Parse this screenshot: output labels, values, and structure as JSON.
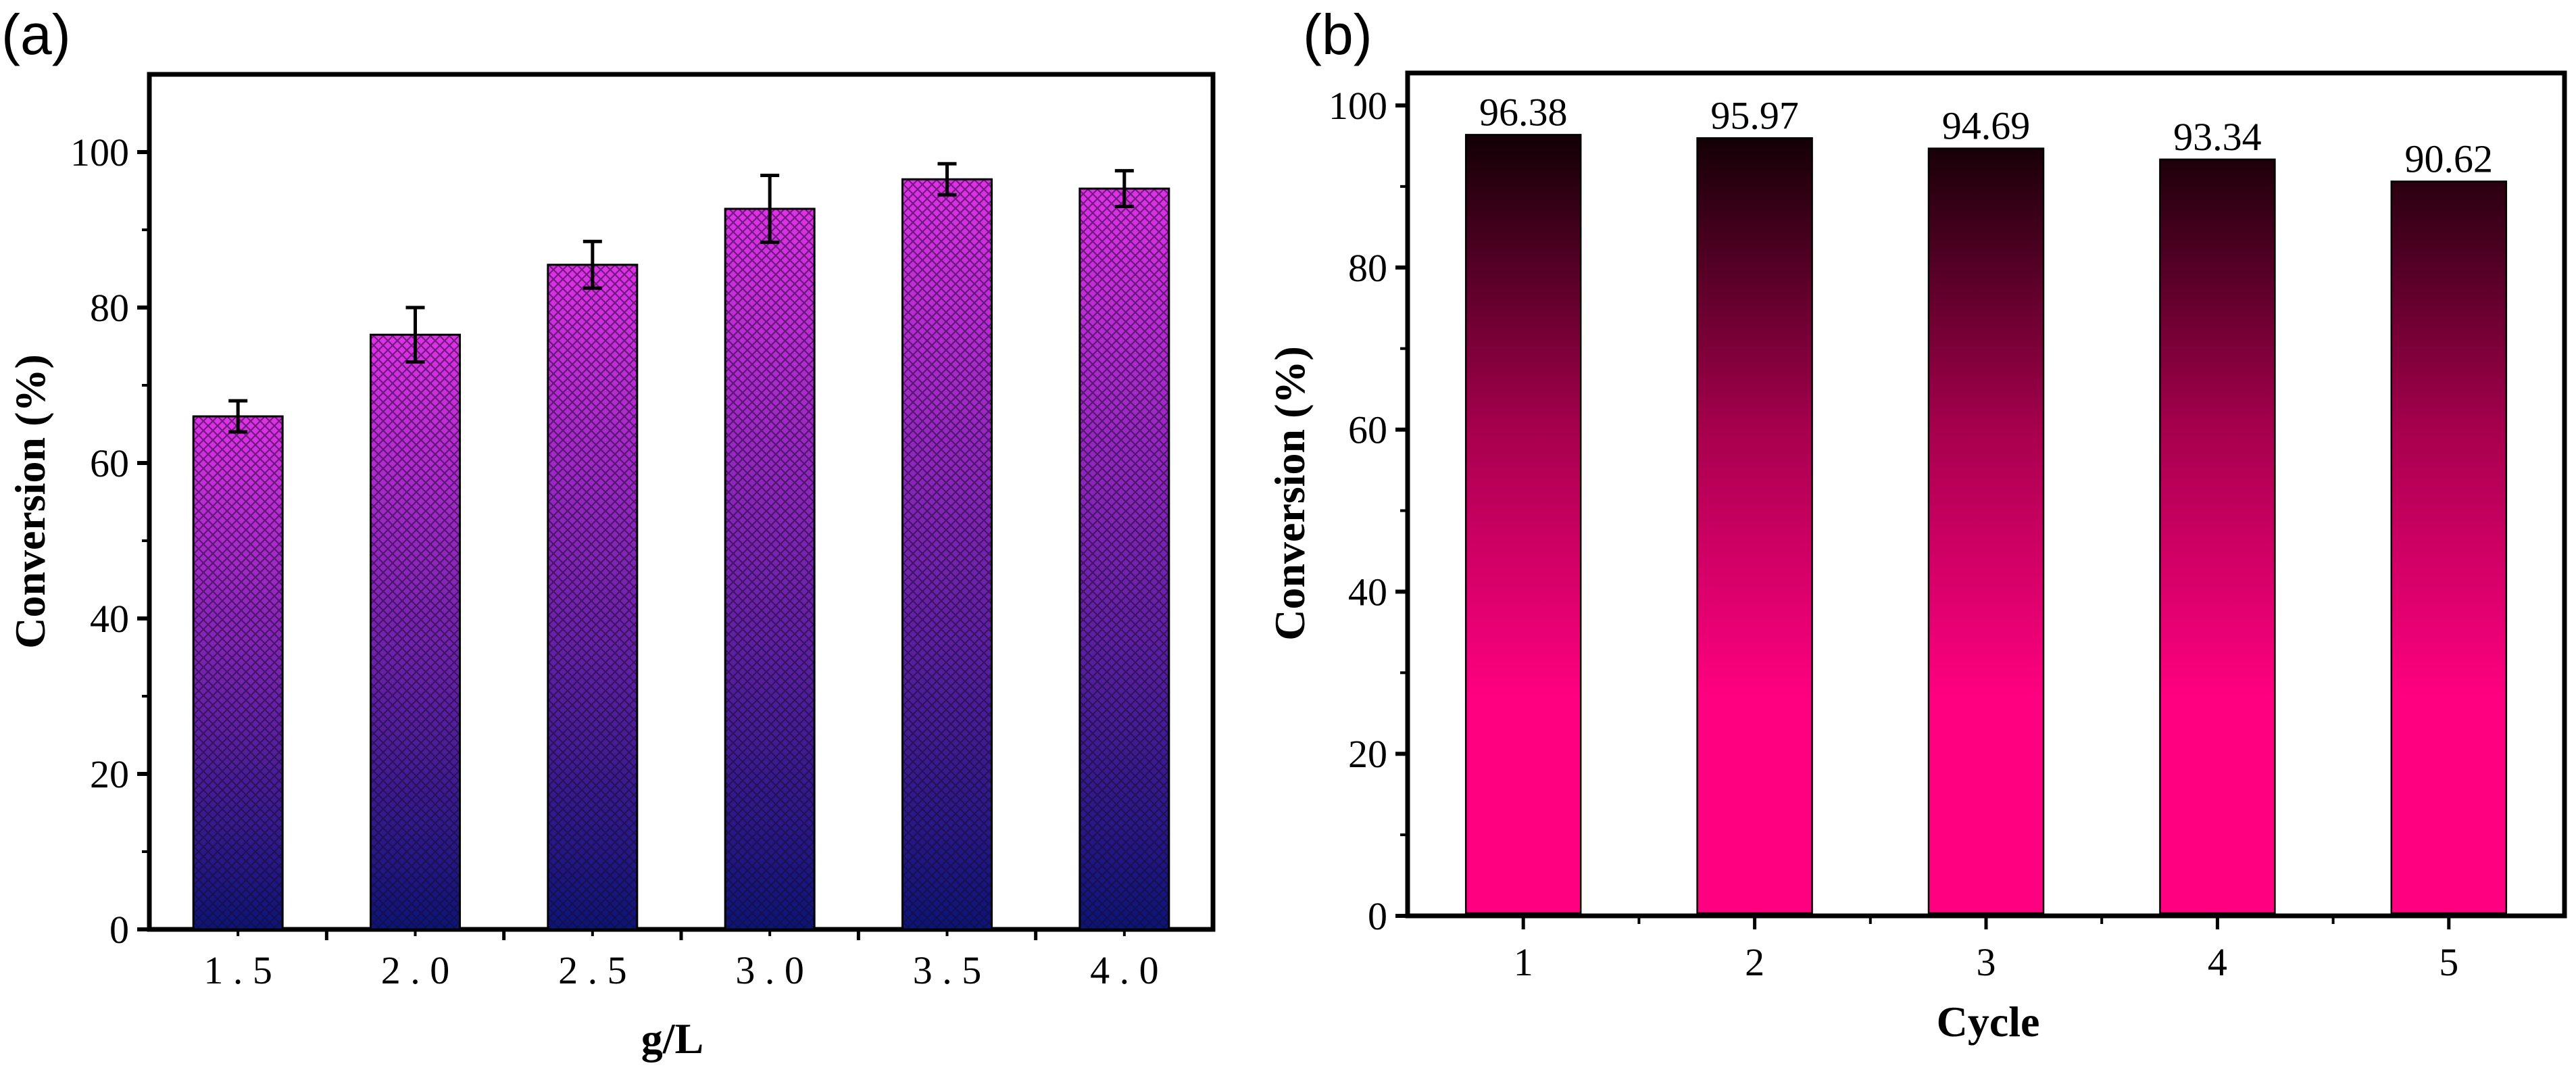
{
  "chart_data": [
    {
      "panel": "(a)",
      "type": "bar",
      "categories": [
        "1.5",
        "2.0",
        "2.5",
        "3.0",
        "3.5",
        "4.0"
      ],
      "values": [
        66,
        76.5,
        85.5,
        92.7,
        96.5,
        95.3
      ],
      "error": [
        2,
        3.5,
        3,
        4.3,
        2,
        2.3
      ],
      "xlabel": "g/L",
      "ylabel": "Conversion (%)",
      "ylim": [
        0,
        110
      ],
      "yticks": [
        0,
        20,
        40,
        60,
        80,
        100
      ],
      "yticks_minor": [
        10,
        30,
        50,
        70,
        90
      ],
      "fill": "cross-hatch pattern with gradient",
      "colors": {
        "top": "#E030E8",
        "bottom": "#0A1478",
        "hatch": "#1a0a2a"
      }
    },
    {
      "panel": "(b)",
      "type": "bar",
      "categories": [
        "1",
        "2",
        "3",
        "4",
        "5"
      ],
      "values": [
        96.38,
        95.97,
        94.69,
        93.34,
        90.62
      ],
      "value_labels": [
        "96.38",
        "95.97",
        "94.69",
        "93.34",
        "90.62"
      ],
      "xlabel": "Cycle",
      "ylabel": "Conversion (%)",
      "ylim": [
        0,
        104
      ],
      "yticks": [
        0,
        20,
        40,
        60,
        80,
        100
      ],
      "yticks_minor": [
        10,
        30,
        50,
        70,
        90
      ],
      "fill": "vertical gradient",
      "colors": {
        "top": "#140005",
        "mid": "#A8004E",
        "bottom": "#FF0080"
      }
    }
  ],
  "panel_labels": [
    "(a)",
    "(b)"
  ]
}
